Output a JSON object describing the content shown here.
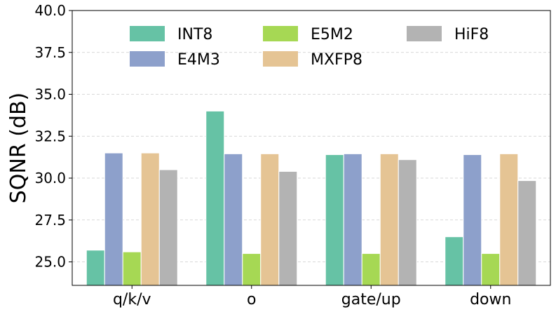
{
  "chart_data": {
    "type": "bar",
    "title": "",
    "xlabel": "",
    "ylabel": "SQNR (dB)",
    "ylim": [
      23.6,
      40.0
    ],
    "yticks": [
      "25.0",
      "27.5",
      "30.0",
      "32.5",
      "35.0",
      "37.5",
      "40.0"
    ],
    "ytick_values": [
      25.0,
      27.5,
      30.0,
      32.5,
      35.0,
      37.5,
      40.0
    ],
    "categories": [
      "q/k/v",
      "o",
      "gate/up",
      "down"
    ],
    "grid": "horizontal dashed",
    "legend_position": "top",
    "series": [
      {
        "name": "INT8",
        "color": "#66c2a5",
        "values": [
          25.7,
          34.0,
          31.4,
          26.5
        ]
      },
      {
        "name": "E4M3",
        "color": "#8da0cb",
        "values": [
          31.5,
          31.45,
          31.45,
          31.4
        ]
      },
      {
        "name": "E5M2",
        "color": "#a6d854",
        "values": [
          25.6,
          25.5,
          25.5,
          25.5
        ]
      },
      {
        "name": "MXFP8",
        "color": "#e5c494",
        "values": [
          31.5,
          31.45,
          31.45,
          31.45
        ]
      },
      {
        "name": "HiF8",
        "color": "#b3b3b3",
        "values": [
          30.5,
          30.4,
          31.1,
          29.85
        ]
      }
    ]
  }
}
